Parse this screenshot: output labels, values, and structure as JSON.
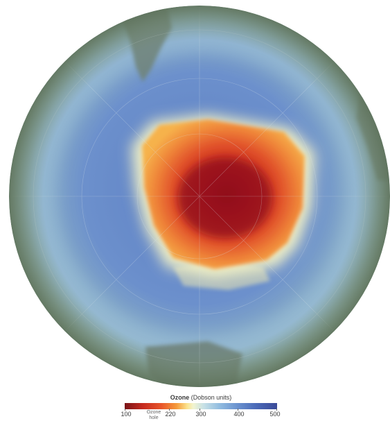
{
  "legend": {
    "title_bold": "Ozone",
    "title_rest": "(Dobson units)",
    "ticks": [
      "100",
      "220",
      "300",
      "400",
      "500"
    ],
    "note_line1": "Ozone",
    "note_line2": "hole",
    "colors": [
      "#7a1418",
      "#c62a1f",
      "#e8552a",
      "#f59a3a",
      "#fbe38e",
      "#f2f4d0",
      "#c6e0e6",
      "#92bde0",
      "#6a92cf",
      "#4b6ab8",
      "#3a4a98"
    ]
  },
  "map": {
    "projection": "south-polar orthographic",
    "features": [
      "ozone-hole",
      "antarctica",
      "south-america",
      "africa",
      "australia"
    ]
  }
}
